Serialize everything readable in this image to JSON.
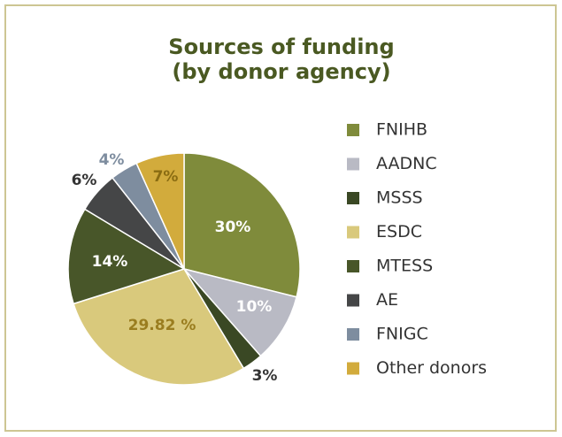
{
  "chart_data": {
    "type": "pie",
    "title": "Sources of funding",
    "subtitle": "(by donor agency)",
    "categories": [
      "FNIHB",
      "AADNC",
      "MSSS",
      "ESDC",
      "MTESS",
      "AE",
      "FNIGC",
      "Other donors"
    ],
    "values": [
      30,
      10,
      3,
      29.82,
      14,
      6,
      4,
      7
    ],
    "value_labels": [
      "30%",
      "10%",
      "3%",
      "29.82 %",
      "14%",
      "6%",
      "4%",
      "7%"
    ],
    "colors": [
      "#7f8b3b",
      "#b9bac4",
      "#3a4824",
      "#d9c97c",
      "#485629",
      "#454647",
      "#7e8d9f",
      "#d2ab3c"
    ],
    "legend": "right"
  }
}
